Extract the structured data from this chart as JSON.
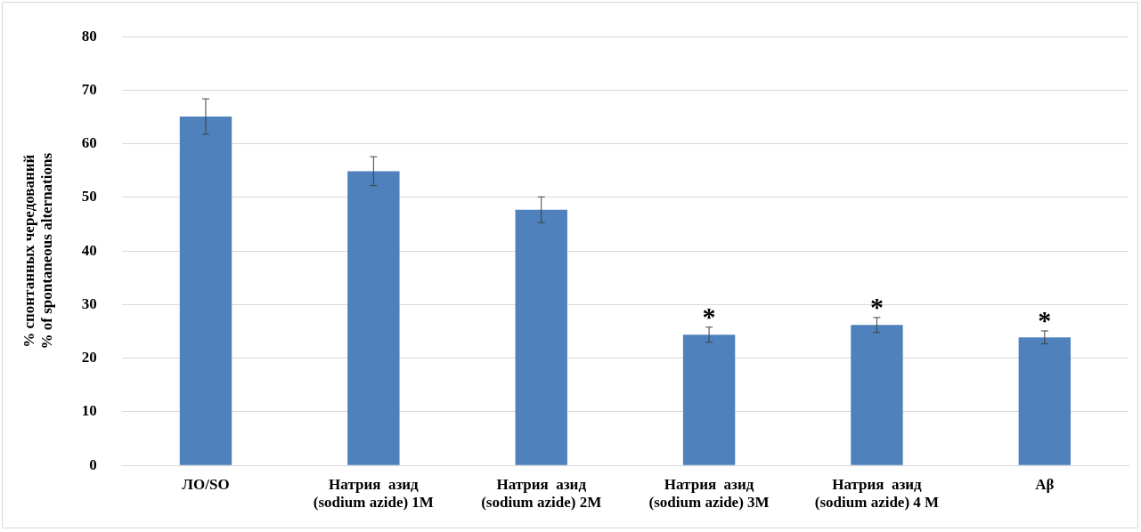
{
  "chart_data": {
    "type": "bar",
    "ylabel": "% спонтанных чередований\n% of spontaneous alternations",
    "categories": [
      "ЛО/SO",
      "Натрия  азид\n(sodium azide) 1M",
      "Натрия  азид\n(sodium azide) 2M",
      "Натрия  азид\n(sodium azide) 3M",
      "Натрия  азид\n(sodium azide) 4 M",
      "Aβ"
    ],
    "values": [
      65.1,
      54.9,
      47.7,
      24.4,
      26.2,
      23.9
    ],
    "errors": [
      3.3,
      2.7,
      2.4,
      1.4,
      1.4,
      1.2
    ],
    "color": "#4f81bd",
    "ylim": [
      0,
      80
    ],
    "yticks": [
      0,
      10,
      20,
      30,
      40,
      50,
      60,
      70,
      80
    ],
    "grid": "y",
    "legend": false,
    "annotations": [
      {
        "text": "*",
        "x": "Натрия  азид\n(sodium azide) 3M",
        "y": 25.8
      },
      {
        "text": "*",
        "x": "Натрия  азид\n(sodium azide) 4 M",
        "y": 27.6
      },
      {
        "text": "*",
        "x": "Aβ",
        "y": 25.1
      }
    ]
  }
}
